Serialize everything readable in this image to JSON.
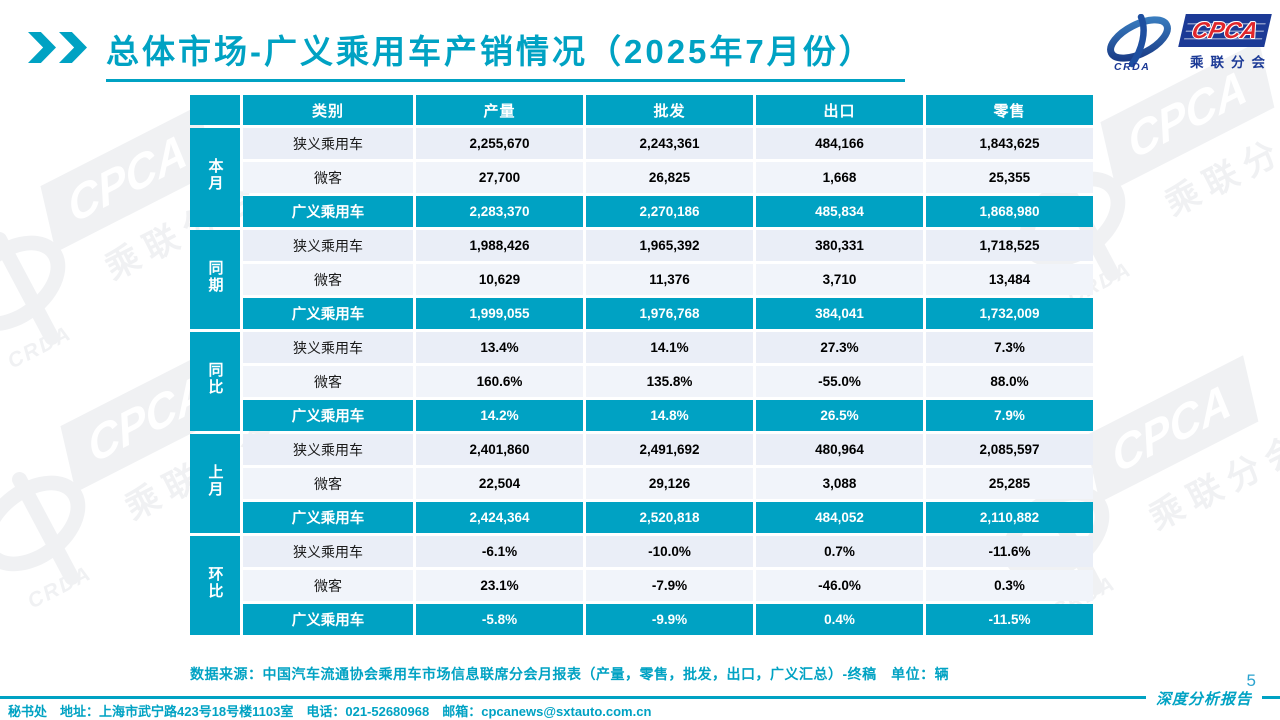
{
  "page": {
    "title": "总体市场-广义乘用车产销情况（2025年7月份）",
    "page_number": "5",
    "report_label": "深度分析报告",
    "source_note": "数据来源：中国汽车流通协会乘用车市场信息联席分会月报表（产量，零售，批发，出口，广义汇总）-终稿　单位：辆",
    "footer_contact": "秘书处　地址：上海市武宁路423号18号楼1103室　电话：021-52680968　邮箱：cpcanews@sxtauto.com.cn"
  },
  "logo": {
    "cpca": "CPCA",
    "crda": "CRDA",
    "subtitle": "乘联分会"
  },
  "watermark": {
    "text": "CPCA",
    "subtext": "乘联分会",
    "crda": "CRDA"
  },
  "colors": {
    "teal": "#00A2C3",
    "navy": "#1C3A96",
    "red": "#E0262B",
    "row_light": "#EAEEF7",
    "row_light_alt": "#F1F4FA",
    "watermark_gray": "#F0F1F3"
  },
  "table": {
    "columns": [
      "类别",
      "产量",
      "批发",
      "出口",
      "零售"
    ],
    "groups": [
      {
        "label": "本月",
        "rows": [
          {
            "category": "狭义乘用车",
            "values": [
              "2,255,670",
              "2,243,361",
              "484,166",
              "1,843,625"
            ],
            "highlight": false
          },
          {
            "category": "微客",
            "values": [
              "27,700",
              "26,825",
              "1,668",
              "25,355"
            ],
            "highlight": false
          },
          {
            "category": "广义乘用车",
            "values": [
              "2,283,370",
              "2,270,186",
              "485,834",
              "1,868,980"
            ],
            "highlight": true
          }
        ]
      },
      {
        "label": "同期",
        "rows": [
          {
            "category": "狭义乘用车",
            "values": [
              "1,988,426",
              "1,965,392",
              "380,331",
              "1,718,525"
            ],
            "highlight": false
          },
          {
            "category": "微客",
            "values": [
              "10,629",
              "11,376",
              "3,710",
              "13,484"
            ],
            "highlight": false
          },
          {
            "category": "广义乘用车",
            "values": [
              "1,999,055",
              "1,976,768",
              "384,041",
              "1,732,009"
            ],
            "highlight": true
          }
        ]
      },
      {
        "label": "同比",
        "rows": [
          {
            "category": "狭义乘用车",
            "values": [
              "13.4%",
              "14.1%",
              "27.3%",
              "7.3%"
            ],
            "highlight": false
          },
          {
            "category": "微客",
            "values": [
              "160.6%",
              "135.8%",
              "-55.0%",
              "88.0%"
            ],
            "highlight": false
          },
          {
            "category": "广义乘用车",
            "values": [
              "14.2%",
              "14.8%",
              "26.5%",
              "7.9%"
            ],
            "highlight": true
          }
        ]
      },
      {
        "label": "上月",
        "rows": [
          {
            "category": "狭义乘用车",
            "values": [
              "2,401,860",
              "2,491,692",
              "480,964",
              "2,085,597"
            ],
            "highlight": false
          },
          {
            "category": "微客",
            "values": [
              "22,504",
              "29,126",
              "3,088",
              "25,285"
            ],
            "highlight": false
          },
          {
            "category": "广义乘用车",
            "values": [
              "2,424,364",
              "2,520,818",
              "484,052",
              "2,110,882"
            ],
            "highlight": true
          }
        ]
      },
      {
        "label": "环比",
        "rows": [
          {
            "category": "狭义乘用车",
            "values": [
              "-6.1%",
              "-10.0%",
              "0.7%",
              "-11.6%"
            ],
            "highlight": false
          },
          {
            "category": "微客",
            "values": [
              "23.1%",
              "-7.9%",
              "-46.0%",
              "0.3%"
            ],
            "highlight": false
          },
          {
            "category": "广义乘用车",
            "values": [
              "-5.8%",
              "-9.9%",
              "0.4%",
              "-11.5%"
            ],
            "highlight": true
          }
        ]
      }
    ]
  }
}
